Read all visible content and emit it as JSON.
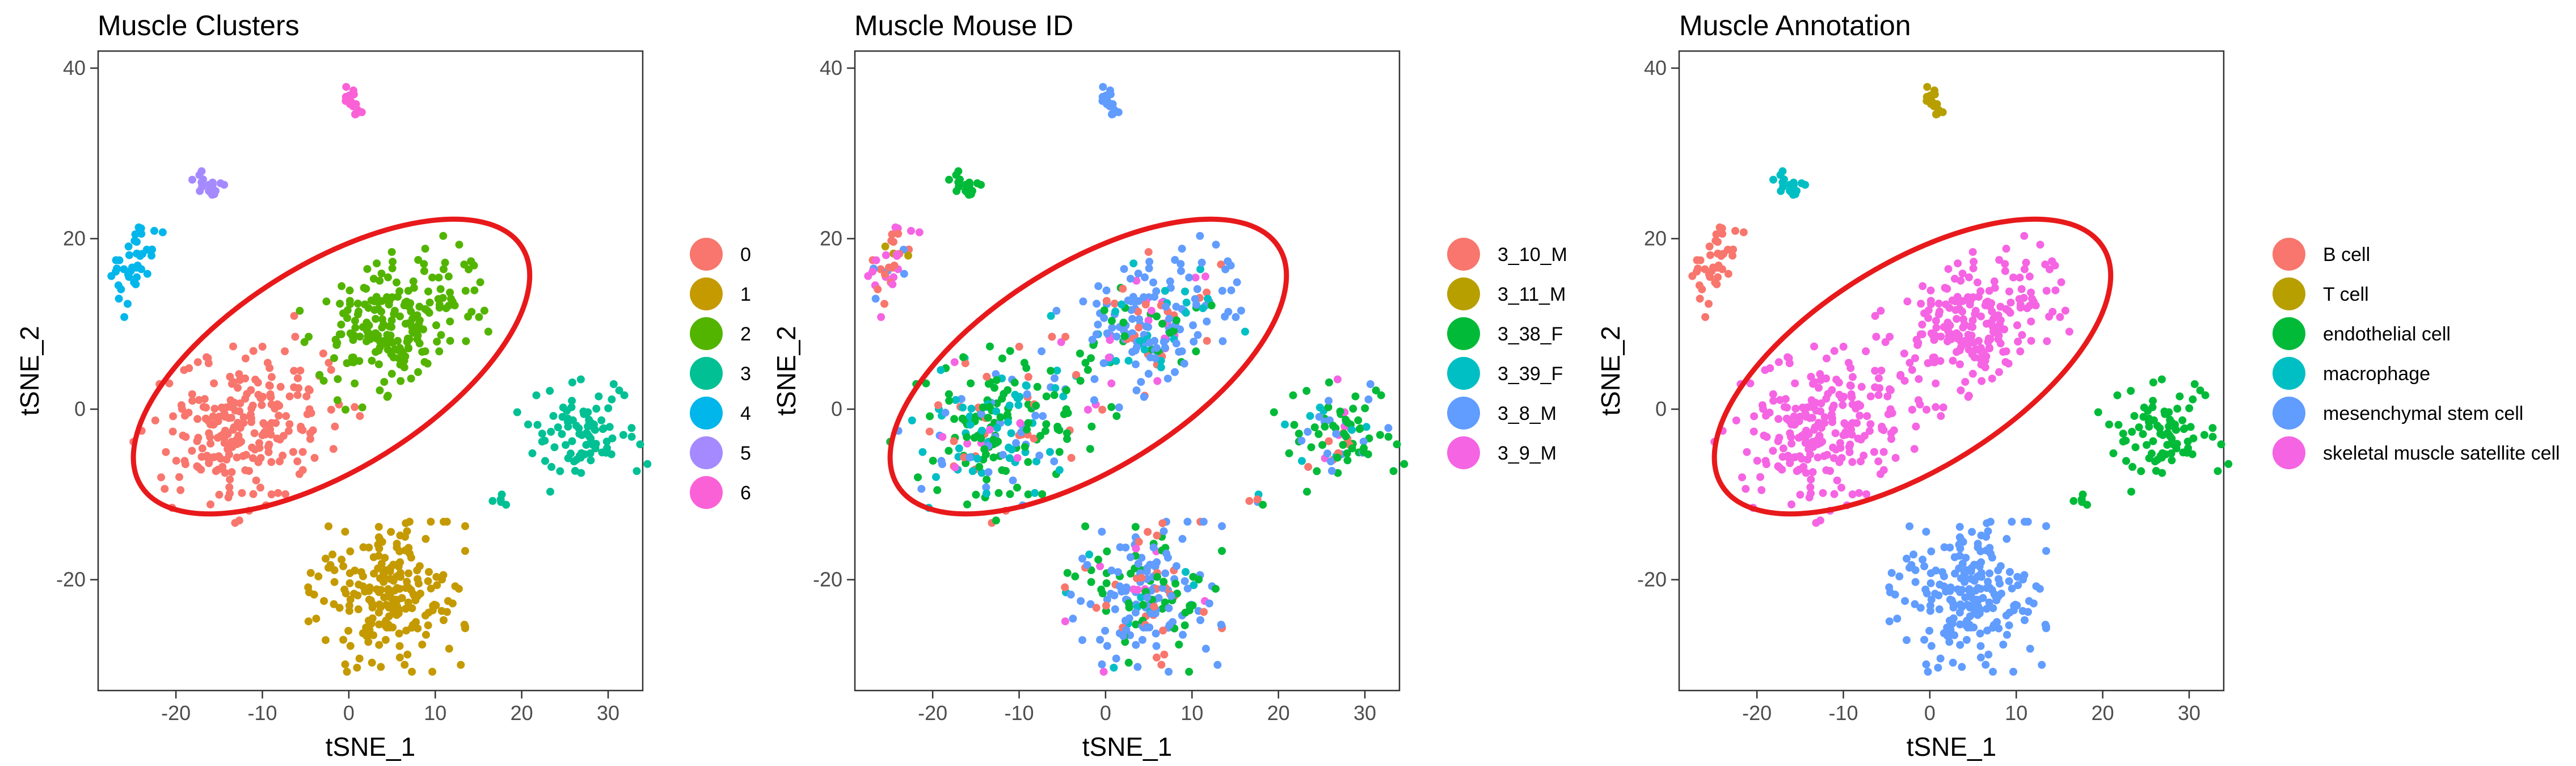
{
  "chart_data": [
    {
      "type": "scatter",
      "title": "Muscle Clusters",
      "xlabel": "tSNE_1",
      "ylabel": "tSNE_2",
      "xlim": [
        -29,
        34
      ],
      "ylim": [
        -33,
        42
      ],
      "xticks": [
        -20,
        -10,
        0,
        10,
        20,
        30
      ],
      "yticks": [
        -20,
        0,
        20,
        40
      ],
      "grid": false,
      "legend_position": "right",
      "annotation": "red ellipse around clusters 0 and 2",
      "series": [
        {
          "name": "0",
          "color": "#F8766D"
        },
        {
          "name": "1",
          "color": "#C49A00"
        },
        {
          "name": "2",
          "color": "#53B400"
        },
        {
          "name": "3",
          "color": "#00C094"
        },
        {
          "name": "4",
          "color": "#00B6EB"
        },
        {
          "name": "5",
          "color": "#A58AFF"
        },
        {
          "name": "6",
          "color": "#FB61D7"
        }
      ]
    },
    {
      "type": "scatter",
      "title": "Muscle Mouse ID",
      "xlabel": "tSNE_1",
      "ylabel": "tSNE_2",
      "xlim": [
        -29,
        34
      ],
      "ylim": [
        -33,
        42
      ],
      "xticks": [
        -20,
        -10,
        0,
        10,
        20,
        30
      ],
      "yticks": [
        -20,
        0,
        20,
        40
      ],
      "grid": false,
      "legend_position": "right",
      "annotation": "red ellipse around the central two-lobed population",
      "series": [
        {
          "name": "3_10_M",
          "color": "#F8766D"
        },
        {
          "name": "3_11_M",
          "color": "#B79F00"
        },
        {
          "name": "3_38_F",
          "color": "#00BA38"
        },
        {
          "name": "3_39_F",
          "color": "#00BFC4"
        },
        {
          "name": "3_8_M",
          "color": "#619CFF"
        },
        {
          "name": "3_9_M",
          "color": "#F564E3"
        }
      ]
    },
    {
      "type": "scatter",
      "title": "Muscle Annotation",
      "xlabel": "tSNE_1",
      "ylabel": "tSNE_2",
      "xlim": [
        -29,
        34
      ],
      "ylim": [
        -33,
        42
      ],
      "xticks": [
        -20,
        -10,
        0,
        10,
        20,
        30
      ],
      "yticks": [
        -20,
        0,
        20,
        40
      ],
      "grid": false,
      "legend_position": "right",
      "annotation": "red ellipse around skeletal muscle satellite cells",
      "series": [
        {
          "name": "B cell",
          "color": "#F8766D"
        },
        {
          "name": "T cell",
          "color": "#B79F00"
        },
        {
          "name": "endothelial cell",
          "color": "#00BA38"
        },
        {
          "name": "macrophage",
          "color": "#00BFC4"
        },
        {
          "name": "mesenchymal stem cell",
          "color": "#619CFF"
        },
        {
          "name": "skeletal muscle satellite cell",
          "color": "#F564E3"
        }
      ]
    }
  ],
  "populations": [
    {
      "id": "lower-left-lobe",
      "cx": -12,
      "cy": -2,
      "sx": 5.5,
      "sy": 4.2,
      "rot": 30,
      "n": 240
    },
    {
      "id": "upper-right-lobe",
      "cx": 5.5,
      "cy": 10.5,
      "sx": 5.0,
      "sy": 3.3,
      "rot": 35,
      "n": 210
    },
    {
      "id": "bottom-cluster",
      "cx": 4,
      "cy": -22,
      "sx": 4.3,
      "sy": 4.0,
      "rot": 0,
      "n": 210
    },
    {
      "id": "right-cluster",
      "cx": 27,
      "cy": -3,
      "sx": 2.8,
      "sy": 2.8,
      "rot": 20,
      "n": 90
    },
    {
      "id": "left-strand",
      "cx": -25,
      "cy": 17,
      "sx": 0.9,
      "sy": 2.8,
      "rot": -20,
      "n": 40
    },
    {
      "id": "upper-small-cluster",
      "cx": -16,
      "cy": 26,
      "sx": 0.9,
      "sy": 1.3,
      "rot": 30,
      "n": 18
    },
    {
      "id": "top-cluster",
      "cx": 0.5,
      "cy": 35.5,
      "sx": 0.5,
      "sy": 1.4,
      "rot": 0,
      "n": 20
    },
    {
      "id": "small-outlier-group",
      "cx": 17.5,
      "cy": -10.5,
      "sx": 0.4,
      "sy": 0.5,
      "rot": 0,
      "n": 5
    }
  ],
  "population_colors": [
    {
      "lower-left-lobe": "0",
      "upper-right-lobe": "2",
      "bottom-cluster": "1",
      "right-cluster": "3",
      "left-strand": "4",
      "upper-small-cluster": "5",
      "top-cluster": "6",
      "small-outlier-group": "3"
    },
    {
      "lower-left-lobe": "mix-a",
      "upper-right-lobe": "mix-b",
      "bottom-cluster": "mix-c",
      "right-cluster": "mix-a",
      "left-strand": "mix-d",
      "upper-small-cluster": "3_38_F",
      "top-cluster": "3_8_M",
      "small-outlier-group": "mix-a"
    },
    {
      "lower-left-lobe": "skeletal muscle satellite cell",
      "upper-right-lobe": "skeletal muscle satellite cell",
      "bottom-cluster": "mesenchymal stem cell",
      "right-cluster": "endothelial cell",
      "left-strand": "B cell",
      "upper-small-cluster": "macrophage",
      "top-cluster": "T cell",
      "small-outlier-group": "endothelial cell"
    }
  ],
  "mixtures": {
    "mix-a": {
      "3_38_F": 0.55,
      "3_39_F": 0.15,
      "3_8_M": 0.15,
      "3_10_M": 0.1,
      "3_9_M": 0.05
    },
    "mix-b": {
      "3_8_M": 0.65,
      "3_39_F": 0.1,
      "3_10_M": 0.1,
      "3_38_F": 0.1,
      "3_9_M": 0.05
    },
    "mix-c": {
      "3_8_M": 0.5,
      "3_38_F": 0.25,
      "3_10_M": 0.1,
      "3_39_F": 0.1,
      "3_9_M": 0.05
    },
    "mix-d": {
      "3_10_M": 0.45,
      "3_9_M": 0.3,
      "3_8_M": 0.15,
      "3_11_M": 0.1
    }
  },
  "highlight_ellipse": {
    "cx": -2,
    "cy": 5,
    "rx": 26,
    "ry": 12,
    "rot": 32,
    "color": "#E8191B"
  }
}
